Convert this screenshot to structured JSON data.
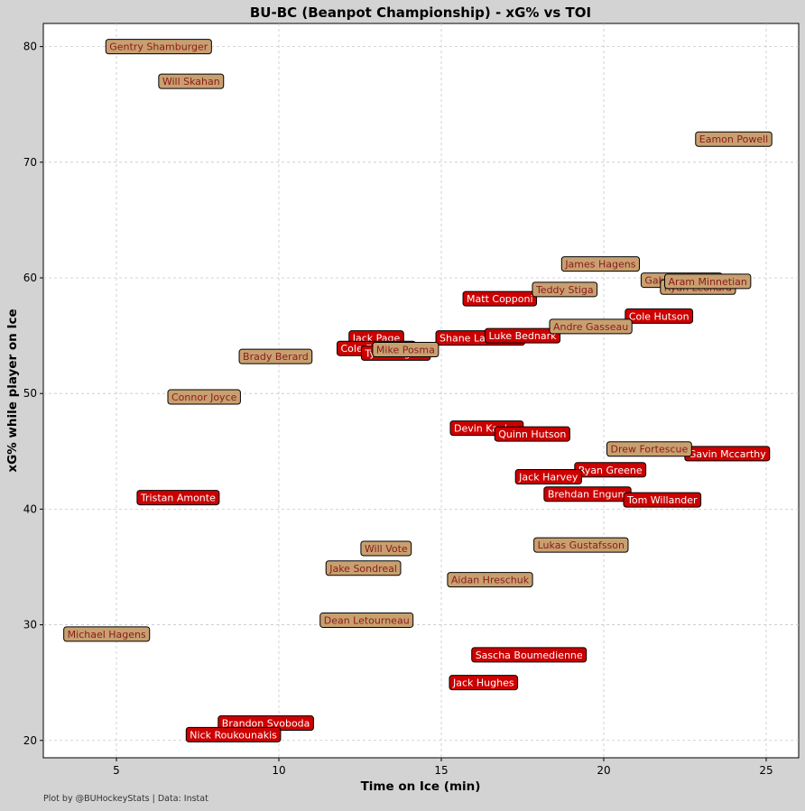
{
  "chart_data": {
    "type": "scatter",
    "title": "BU-BC (Beanpot Championship) - xG% vs TOI",
    "xlabel": "Time on Ice (min)",
    "ylabel": "xG% while player on Ice",
    "xlim": [
      2.75,
      26.0
    ],
    "ylim": [
      18.5,
      82.0
    ],
    "xticks": [
      5,
      10,
      15,
      20,
      25
    ],
    "yticks": [
      20,
      30,
      40,
      50,
      60,
      70,
      80
    ],
    "grid": true,
    "colors": {
      "BU": "#cc0000",
      "BC": "#c8a070"
    },
    "series": [
      {
        "team": "BU",
        "points": [
          {
            "label": "Matt Copponi",
            "x": 16.8,
            "y": 58.2
          },
          {
            "label": "Shane Lachance",
            "x": 16.2,
            "y": 54.8
          },
          {
            "label": "Jack Page",
            "x": 13.0,
            "y": 54.8
          },
          {
            "label": "Cole Eiserman",
            "x": 13.0,
            "y": 53.9
          },
          {
            "label": "Ty Gallagher",
            "x": 13.6,
            "y": 53.5
          },
          {
            "label": "Luke Bednark",
            "x": 17.5,
            "y": 55.0
          },
          {
            "label": "Cole Hutson",
            "x": 21.7,
            "y": 56.7
          },
          {
            "label": "Devin Kaplan",
            "x": 16.4,
            "y": 47.0
          },
          {
            "label": "Quinn Hutson",
            "x": 17.8,
            "y": 46.5
          },
          {
            "label": "Gavin Mccarthy",
            "x": 23.8,
            "y": 44.8
          },
          {
            "label": "Ryan Greene",
            "x": 20.2,
            "y": 43.4
          },
          {
            "label": "Jack Harvey",
            "x": 18.3,
            "y": 42.8
          },
          {
            "label": "Brehdan Engum",
            "x": 19.5,
            "y": 41.3
          },
          {
            "label": "Tom Willander",
            "x": 21.8,
            "y": 40.8
          },
          {
            "label": "Tristan Amonte",
            "x": 6.9,
            "y": 41.0
          },
          {
            "label": "Sascha Boumedienne",
            "x": 17.7,
            "y": 27.4
          },
          {
            "label": "Jack Hughes",
            "x": 16.3,
            "y": 25.0
          },
          {
            "label": "Brandon Svoboda",
            "x": 9.6,
            "y": 21.5
          },
          {
            "label": "Nick Roukounakis",
            "x": 8.6,
            "y": 20.5
          }
        ]
      },
      {
        "team": "BC",
        "points": [
          {
            "label": "Gentry Shamburger",
            "x": 6.3,
            "y": 80.0
          },
          {
            "label": "Will Skahan",
            "x": 7.3,
            "y": 77.0
          },
          {
            "label": "Eamon Powell",
            "x": 24.0,
            "y": 72.0
          },
          {
            "label": "James Hagens",
            "x": 19.9,
            "y": 61.2
          },
          {
            "label": "Gabe Perreault",
            "x": 22.4,
            "y": 59.8
          },
          {
            "label": "Ryan Leonard",
            "x": 22.9,
            "y": 59.2
          },
          {
            "label": "Aram Minnetian",
            "x": 23.2,
            "y": 59.7
          },
          {
            "label": "Teddy Stiga",
            "x": 18.8,
            "y": 59.0
          },
          {
            "label": "Andre Gasseau",
            "x": 19.6,
            "y": 55.8
          },
          {
            "label": "Mike Posma",
            "x": 13.9,
            "y": 53.8
          },
          {
            "label": "Brady Berard",
            "x": 9.9,
            "y": 53.2
          },
          {
            "label": "Connor Joyce",
            "x": 7.7,
            "y": 49.7
          },
          {
            "label": "Drew Fortescue",
            "x": 21.4,
            "y": 45.2
          },
          {
            "label": "Lukas Gustafsson",
            "x": 19.3,
            "y": 36.9
          },
          {
            "label": "Will Vote",
            "x": 13.3,
            "y": 36.6
          },
          {
            "label": "Jake Sondreal",
            "x": 12.6,
            "y": 34.9
          },
          {
            "label": "Aidan Hreschuk",
            "x": 16.5,
            "y": 33.9
          },
          {
            "label": "Dean Letourneau",
            "x": 12.7,
            "y": 30.4
          },
          {
            "label": "Michael Hagens",
            "x": 4.7,
            "y": 29.2
          }
        ]
      }
    ]
  },
  "footer": {
    "caption": "Plot by @BUHockeyStats | Data: Instat"
  }
}
